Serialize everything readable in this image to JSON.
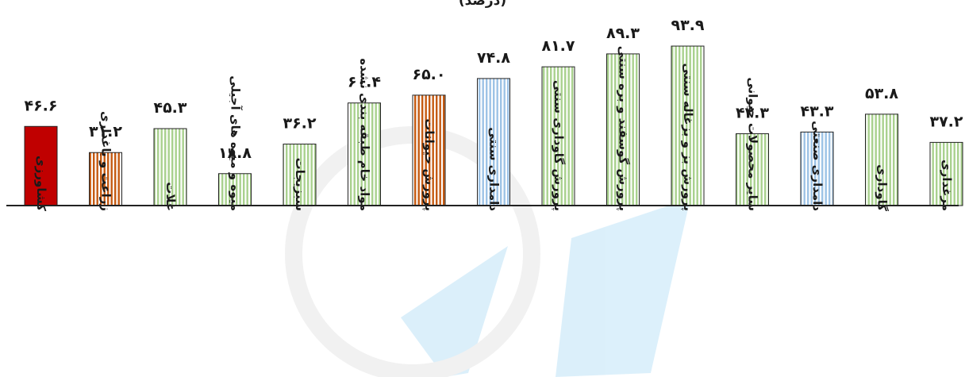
{
  "chart_data": {
    "type": "bar",
    "title": "(درصد)",
    "categories": [
      "کشاورزی",
      "زراعت و باغداری",
      "غلات",
      "میوه و میوه های آجیلی",
      "سبزیجات",
      "مواد خام طبقه بندی نشده",
      "پرورش حیوانات",
      "دامداری سنتی",
      "پرورش گاوداری سنتی",
      "پرورش گوسفند و بره سنتی",
      "پرورش بز و بزغاله سنتی",
      "سایر محصولات حیوانی",
      "دامداری صنعتی",
      "گاوداری",
      "مرغداری"
    ],
    "values": [
      46.6,
      31.2,
      45.3,
      18.8,
      36.2,
      60.4,
      65.0,
      74.8,
      81.7,
      89.3,
      93.9,
      42.3,
      43.3,
      53.8,
      37.2
    ],
    "value_labels": [
      "۴۶.۶",
      "۳۱.۲",
      "۴۵.۳",
      "۱۸.۸",
      "۳۶.۲",
      "۶۰.۴",
      "۶۵.۰",
      "۷۴.۸",
      "۸۱.۷",
      "۸۹.۳",
      "۹۳.۹",
      "۴۲.۳",
      "۴۳.۳",
      "۵۳.۸",
      "۳۷.۲"
    ],
    "bar_styles": [
      "solid-red",
      "orange-stripe",
      "green-stripe",
      "green-stripe",
      "green-stripe",
      "green-stripe",
      "orange-stripe",
      "blue-stripe",
      "green-stripe",
      "green-stripe",
      "green-stripe",
      "green-stripe",
      "blue-stripe",
      "green-stripe",
      "green-stripe"
    ],
    "ylim": [
      0,
      100
    ],
    "grid": false,
    "legend": "none",
    "colors": {
      "solid_red": "#c00000",
      "orange_stripe": "#c55a11",
      "green_stripe": "#a9d18e",
      "blue_stripe": "#9dc3e6",
      "outline": "#222222",
      "axis": "#222222"
    }
  }
}
